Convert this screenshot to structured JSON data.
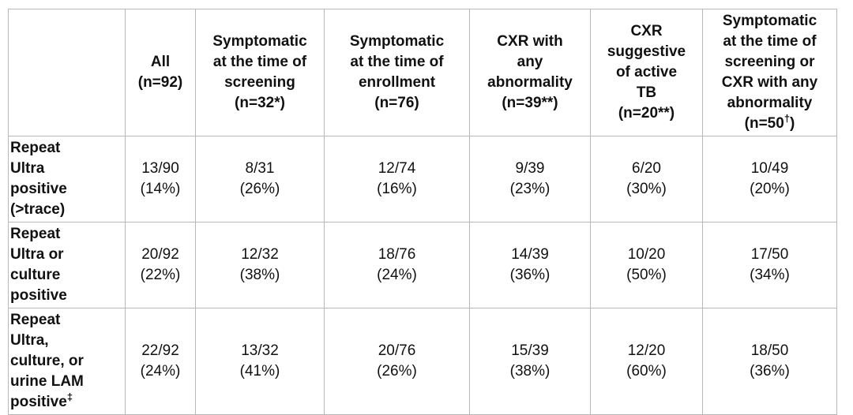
{
  "colors": {
    "border": "#b8b8b8",
    "text": "#111111",
    "background": "#ffffff"
  },
  "table": {
    "columns": [
      {
        "lines": []
      },
      {
        "lines": [
          "All",
          "(n=92)"
        ]
      },
      {
        "lines": [
          "Symptomatic",
          "at the time of",
          "screening",
          "(n=32*)"
        ]
      },
      {
        "lines": [
          "Symptomatic",
          "at the time of",
          "enrollment",
          "(n=76)"
        ]
      },
      {
        "lines": [
          "CXR with",
          "any",
          "abnormality",
          "(n=39**)"
        ]
      },
      {
        "lines": [
          "CXR",
          "suggestive",
          "of active",
          "TB",
          "(n=20**)"
        ]
      },
      {
        "lines": [
          "Symptomatic",
          "at the time of",
          "screening or",
          "CXR with any",
          "abnormality"
        ],
        "n_pre": "(n=50",
        "n_sup": "†",
        "n_post": ")"
      }
    ],
    "rows": [
      {
        "label_lines": [
          "Repeat",
          "Ultra",
          "positive",
          "(>trace)"
        ],
        "cells": [
          {
            "frac": "13/90",
            "pct": "(14%)"
          },
          {
            "frac": "8/31",
            "pct": "(26%)"
          },
          {
            "frac": "12/74",
            "pct": "(16%)"
          },
          {
            "frac": "9/39",
            "pct": "(23%)"
          },
          {
            "frac": "6/20",
            "pct": "(30%)"
          },
          {
            "frac": "10/49",
            "pct": "(20%)"
          }
        ]
      },
      {
        "label_lines": [
          "Repeat",
          "Ultra or",
          "culture",
          "positive"
        ],
        "cells": [
          {
            "frac": "20/92",
            "pct": "(22%)"
          },
          {
            "frac": "12/32",
            "pct": "(38%)"
          },
          {
            "frac": "18/76",
            "pct": "(24%)"
          },
          {
            "frac": "14/39",
            "pct": "(36%)"
          },
          {
            "frac": "10/20",
            "pct": "(50%)"
          },
          {
            "frac": "17/50",
            "pct": "(34%)"
          }
        ]
      },
      {
        "label_lines": [
          "Repeat",
          "Ultra,",
          "culture, or",
          "urine LAM"
        ],
        "label_last": "positive",
        "label_sup": "‡",
        "cells": [
          {
            "frac": "22/92",
            "pct": "(24%)"
          },
          {
            "frac": "13/32",
            "pct": "(41%)"
          },
          {
            "frac": "20/76",
            "pct": "(26%)"
          },
          {
            "frac": "15/39",
            "pct": "(38%)"
          },
          {
            "frac": "12/20",
            "pct": "(60%)"
          },
          {
            "frac": "18/50",
            "pct": "(36%)"
          }
        ]
      }
    ]
  }
}
